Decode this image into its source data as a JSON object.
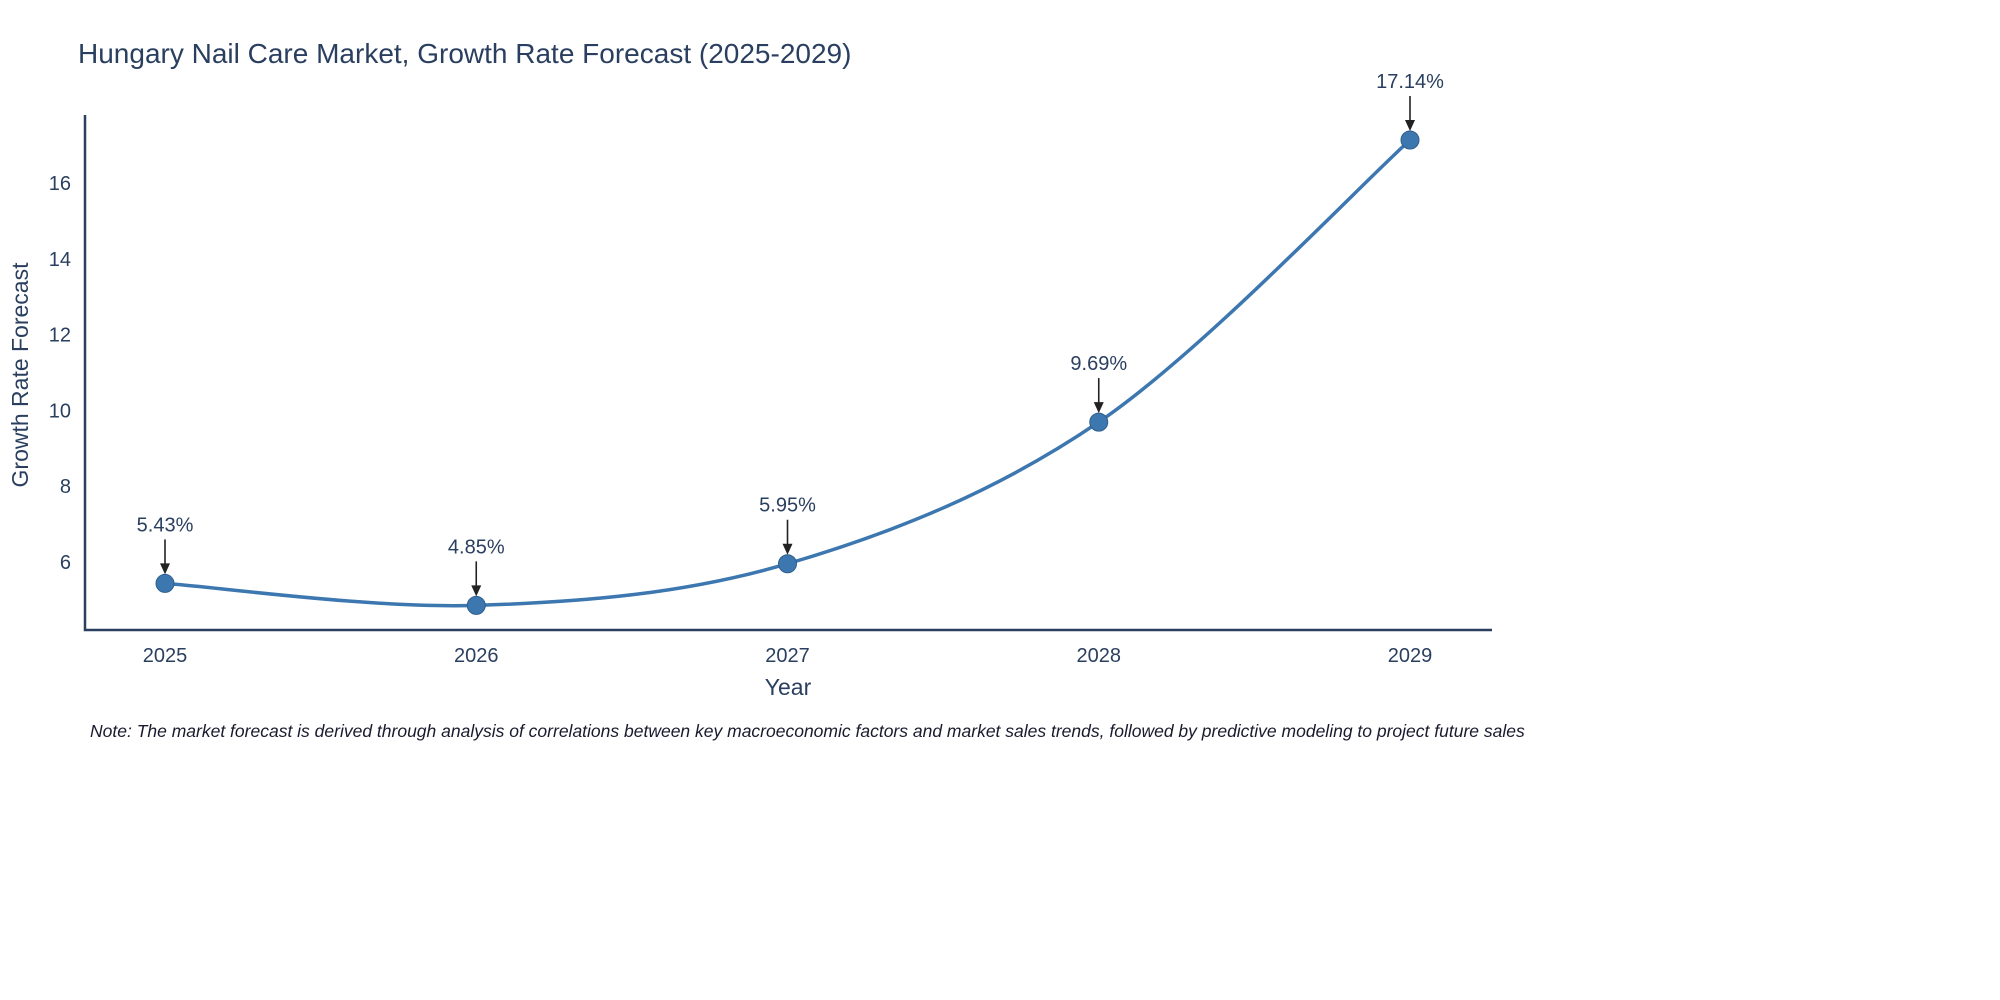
{
  "chart_data": {
    "type": "line",
    "title": "Hungary Nail Care Market, Growth Rate Forecast (2025-2029)",
    "xlabel": "Year",
    "ylabel": "Growth Rate Forecast",
    "categories": [
      "2025",
      "2026",
      "2027",
      "2028",
      "2029"
    ],
    "values": [
      5.43,
      4.85,
      5.95,
      9.69,
      17.14
    ],
    "annotations": [
      "5.43%",
      "4.85%",
      "5.95%",
      "9.69%",
      "17.14%"
    ],
    "yticks": [
      6,
      8,
      10,
      12,
      14,
      16
    ],
    "ylim": [
      4.2,
      17.8
    ],
    "grid": false,
    "legend": "none",
    "line_color": "#3c77b0",
    "marker_color": "#3c77b0",
    "axis_color": "#2a3f5f",
    "text_color": "#2a3f5f",
    "annotation_arrow_color": "#222222"
  },
  "note": "Note: The market forecast is derived through analysis of correlations between key macroeconomic factors and market sales trends, followed by predictive modeling to project future sales"
}
